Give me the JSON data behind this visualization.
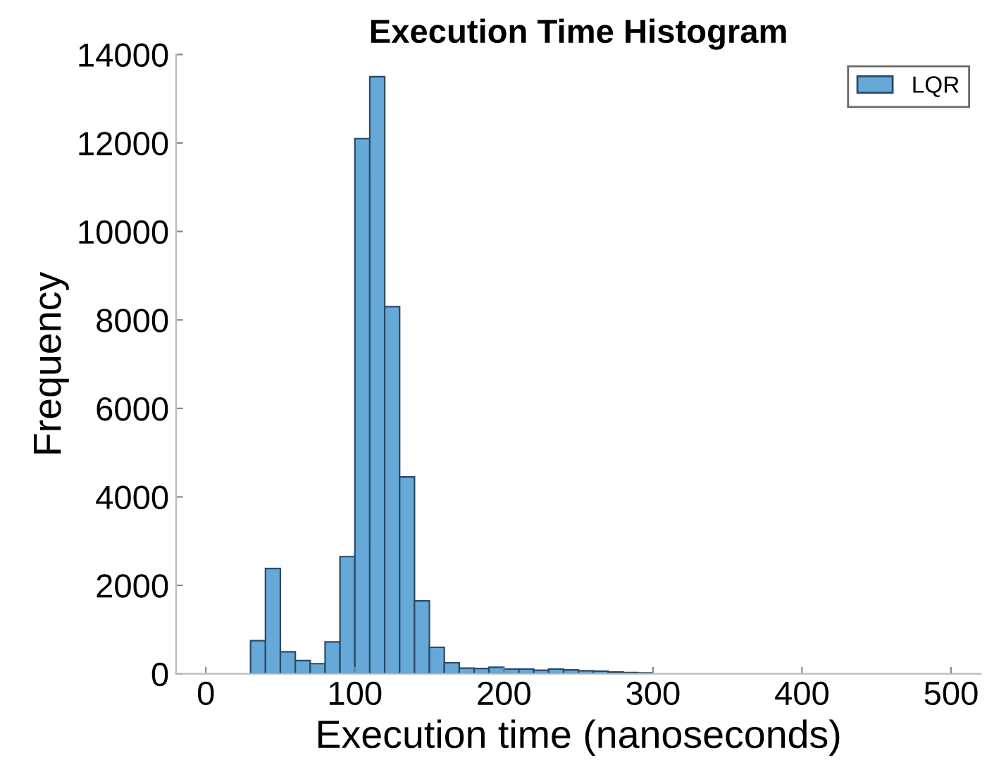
{
  "chart_data": {
    "type": "histogram",
    "title": "Execution Time Histogram",
    "xlabel": "Execution time (nanoseconds)",
    "ylabel": "Frequency",
    "bins": [
      0,
      10,
      20,
      30,
      40,
      50,
      60,
      70,
      80,
      90,
      100,
      110,
      120,
      130,
      140,
      150,
      160,
      170,
      180,
      190,
      200,
      210,
      220,
      230,
      240,
      250,
      260,
      270,
      280,
      290,
      300,
      310,
      320,
      330,
      340,
      350,
      360,
      370,
      380,
      390,
      400,
      410,
      420,
      430,
      440,
      450,
      460,
      470,
      480,
      490,
      500,
      510
    ],
    "series": [
      {
        "name": "LQR",
        "color": "#66a8d7",
        "values": [
          0,
          0,
          0,
          750,
          2380,
          500,
          300,
          230,
          720,
          2650,
          12100,
          13500,
          8300,
          4450,
          1650,
          600,
          250,
          130,
          120,
          150,
          110,
          110,
          80,
          110,
          90,
          70,
          60,
          40,
          30,
          20,
          0,
          0,
          0,
          0,
          0,
          0,
          0,
          0,
          0,
          0,
          0,
          0,
          0,
          0,
          0,
          0,
          0,
          0,
          0,
          0,
          0
        ]
      }
    ],
    "xlim": [
      -20,
      520
    ],
    "xticks": [
      0,
      100,
      200,
      300,
      400,
      500
    ],
    "ylim": [
      0,
      14000
    ],
    "yticks": [
      0,
      2000,
      4000,
      6000,
      8000,
      10000,
      12000,
      14000
    ],
    "legend": "top right",
    "grid": false
  }
}
